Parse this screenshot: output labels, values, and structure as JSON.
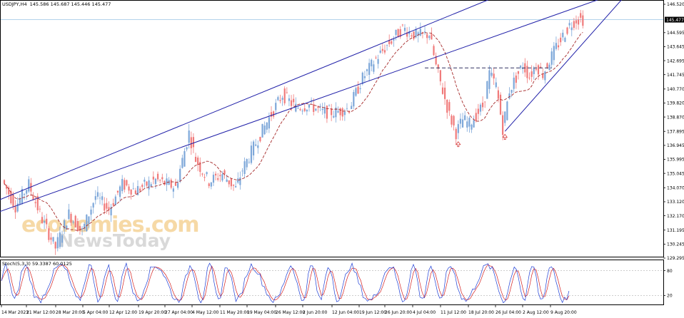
{
  "header": {
    "symbol": "USDJPY,H4",
    "ohlc": "145.586 145.687 145.446 145.477"
  },
  "stoch_header": "Stoch(5,3,3) 59.3387 60.0125",
  "watermark": {
    "brand": "economies.com",
    "sub": "NewsToday"
  },
  "chart_data": {
    "type": "candlestick",
    "price_axis": {
      "range": [
        129.295,
        146.52
      ],
      "ticks": [
        "146.520",
        "145.477",
        "144.595",
        "143.645",
        "142.695",
        "141.745",
        "140.770",
        "139.820",
        "138.870",
        "137.895",
        "136.945",
        "135.995",
        "135.045",
        "134.070",
        "133.120",
        "132.170",
        "131.195",
        "130.245",
        "129.295"
      ]
    },
    "current_price": "145.477",
    "current_price_value": 145.477,
    "x_labels": [
      "14 Mar 2023",
      "21 Mar 12:00",
      "28 Mar 20:00",
      "5 Apr 04:00",
      "12 Apr 12:00",
      "19 Apr 20:00",
      "27 Apr 04:00",
      "4 May 12:00",
      "11 May 20:00",
      "19 May 04:00",
      "26 May 12:00",
      "2 Jun 20:00",
      "12 Jun 04:00",
      "19 Jun 12:00",
      "26 Jun 20:00",
      "4 Jul 04:00",
      "11 Jul 12:00",
      "18 Jul 20:00",
      "26 Jul 04:00",
      "2 Aug 12:00",
      "9 Aug 20:00"
    ],
    "price_path": [
      [
        0,
        134.6
      ],
      [
        2,
        132.8
      ],
      [
        4,
        134.3
      ],
      [
        6,
        131.9
      ],
      [
        8,
        130.0
      ],
      [
        10,
        132.3
      ],
      [
        12,
        131.1
      ],
      [
        14,
        133.5
      ],
      [
        16,
        132.6
      ],
      [
        18,
        134.3
      ],
      [
        20,
        133.9
      ],
      [
        23,
        134.6
      ],
      [
        26,
        134.1
      ],
      [
        28,
        137.8
      ],
      [
        29,
        136.0
      ],
      [
        30,
        135.2
      ],
      [
        31,
        134.5
      ],
      [
        33,
        135.0
      ],
      [
        35,
        134.0
      ],
      [
        36,
        135.3
      ],
      [
        38,
        137.1
      ],
      [
        40,
        138.8
      ],
      [
        42,
        140.4
      ],
      [
        44,
        139.5
      ],
      [
        46,
        139.7
      ],
      [
        48,
        139.2
      ],
      [
        50,
        139.2
      ],
      [
        52,
        139.5
      ],
      [
        54,
        141.5
      ],
      [
        56,
        142.8
      ],
      [
        58,
        143.9
      ],
      [
        60,
        144.9
      ],
      [
        62,
        144.4
      ],
      [
        64,
        144.5
      ],
      [
        65,
        142.3
      ],
      [
        67,
        139.0
      ],
      [
        68,
        137.8
      ],
      [
        69,
        138.7
      ],
      [
        70,
        138.4
      ],
      [
        72,
        139.6
      ],
      [
        73,
        141.8
      ],
      [
        74,
        141.0
      ],
      [
        75,
        138.1
      ],
      [
        76,
        140.7
      ],
      [
        78,
        142.4
      ],
      [
        79,
        141.6
      ],
      [
        80,
        142.4
      ],
      [
        81,
        141.8
      ],
      [
        83,
        143.6
      ],
      [
        85,
        145.1
      ],
      [
        86,
        145.5
      ]
    ],
    "candles": 86,
    "moving_average": {
      "style": "dashed",
      "color": "#a62a2a"
    },
    "trendlines": [
      {
        "label": "upper channel",
        "from": [
          -1,
          133.2
        ],
        "to": [
          74,
          147.1
        ]
      },
      {
        "label": "lower channel",
        "from": [
          -1,
          132.4
        ],
        "to": [
          95,
          147.8
        ]
      },
      {
        "label": "short-term support",
        "from": [
          75,
          137.9
        ],
        "to": [
          93,
          147.1
        ]
      },
      {
        "label": "neckline",
        "from": [
          63,
          142.2
        ],
        "to": [
          82,
          142.2
        ],
        "style": "dashed"
      }
    ],
    "annotations": [
      {
        "type": "arrow-up",
        "at_candle": 68,
        "price": 137.0
      },
      {
        "type": "arrow-up",
        "at_candle": 75,
        "price": 137.5
      }
    ],
    "stochastic": {
      "range": [
        0,
        100
      ],
      "levels": [
        80,
        20
      ],
      "tick_labels": [
        "80",
        "20"
      ],
      "k_color": "#1f3fd6",
      "d_color": "#d42020"
    },
    "colors": {
      "bull": "#7da7d9",
      "bear": "#f07a7a",
      "trend": "#1f1fa8",
      "grid_price": "#a8cde8"
    }
  }
}
